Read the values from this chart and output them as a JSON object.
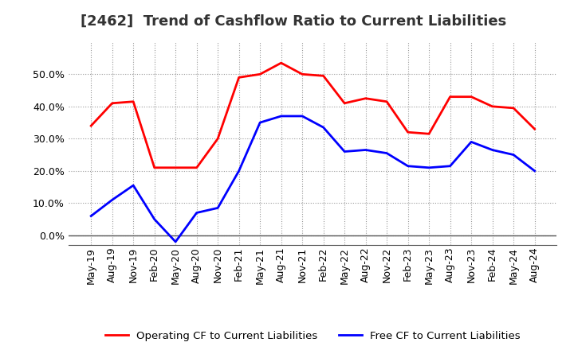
{
  "title": "[2462]  Trend of Cashflow Ratio to Current Liabilities",
  "x_labels": [
    "May-19",
    "Aug-19",
    "Nov-19",
    "Feb-20",
    "May-20",
    "Aug-20",
    "Nov-20",
    "Feb-21",
    "May-21",
    "Aug-21",
    "Nov-21",
    "Feb-22",
    "May-22",
    "Aug-22",
    "Nov-22",
    "Feb-23",
    "May-23",
    "Aug-23",
    "Nov-23",
    "Feb-24",
    "May-24",
    "Aug-24"
  ],
  "operating_cf": [
    0.34,
    0.41,
    0.415,
    0.21,
    0.21,
    0.21,
    0.3,
    0.49,
    0.5,
    0.535,
    0.5,
    0.495,
    0.41,
    0.425,
    0.415,
    0.32,
    0.315,
    0.43,
    0.43,
    0.4,
    0.395,
    0.33
  ],
  "free_cf": [
    0.06,
    0.11,
    0.155,
    0.05,
    -0.02,
    0.07,
    0.085,
    0.2,
    0.35,
    0.37,
    0.37,
    0.335,
    0.26,
    0.265,
    0.255,
    0.215,
    0.21,
    0.215,
    0.29,
    0.265,
    0.25,
    0.2
  ],
  "operating_color": "#FF0000",
  "free_color": "#0000FF",
  "background_color": "#FFFFFF",
  "plot_bg_color": "#FFFFFF",
  "grid_color": "#999999",
  "ylim": [
    -0.03,
    0.6
  ],
  "yticks": [
    0.0,
    0.1,
    0.2,
    0.3,
    0.4,
    0.5
  ],
  "legend_operating": "Operating CF to Current Liabilities",
  "legend_free": "Free CF to Current Liabilities",
  "line_width": 2.0,
  "title_fontsize": 13,
  "tick_fontsize": 9
}
